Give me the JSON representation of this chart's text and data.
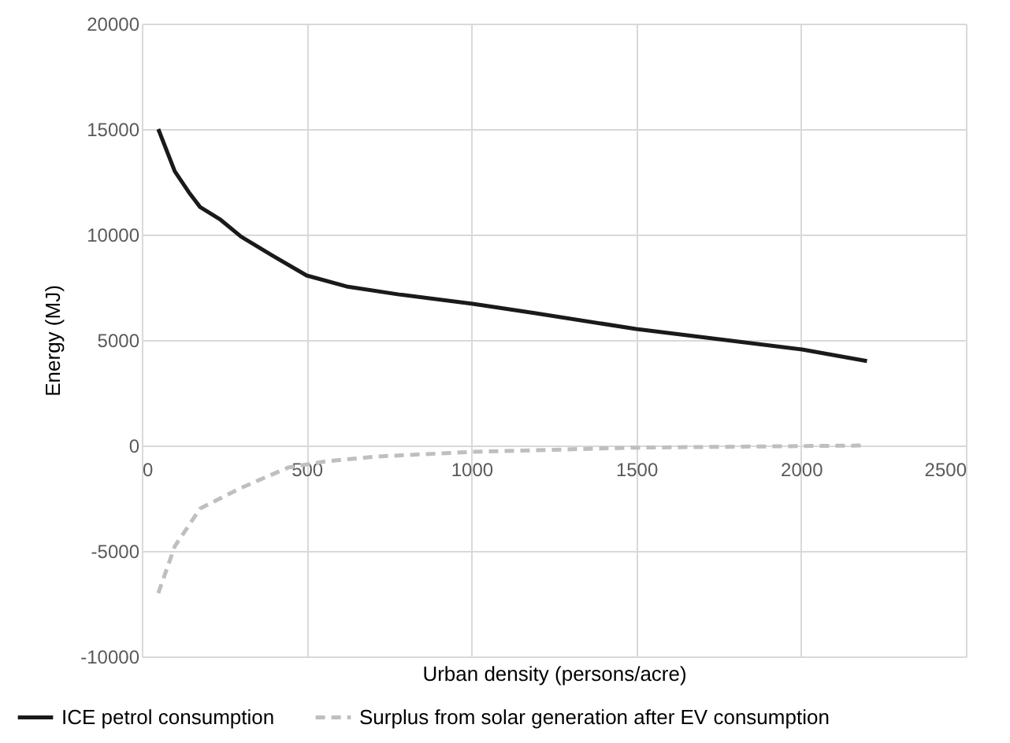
{
  "chart_data": {
    "type": "line",
    "xlabel": "Urban density (persons/acre)",
    "ylabel": "Energy (MJ)",
    "xlim": [
      0,
      2500
    ],
    "xticks": [
      0,
      500,
      1000,
      1500,
      2000,
      2500
    ],
    "ylim": [
      -10000,
      20000
    ],
    "yticks": [
      -10000,
      -5000,
      0,
      5000,
      10000,
      15000,
      20000
    ],
    "grid": true,
    "legend": "bottom",
    "marker": "none",
    "series": [
      {
        "name": "ICE petrol consumption",
        "color": "#1a1a1a",
        "line_style": "solid",
        "x": [
          50,
          100,
          143,
          177,
          239,
          301,
          397,
          500,
          621,
          780,
          1004,
          1195,
          1500,
          2003,
          2200
        ],
        "values": [
          15000,
          13000,
          12000,
          11300,
          10700,
          9900,
          9000,
          8060,
          7540,
          7160,
          6720,
          6270,
          5520,
          4550,
          4000
        ]
      },
      {
        "name": "Surplus from solar generation after EV consumption",
        "color": "#bfbfbf",
        "line_style": "dashed",
        "x": [
          50,
          100,
          177,
          301,
          445,
          558,
          717,
          1004,
          1500,
          2200
        ],
        "values": [
          -7000,
          -4780,
          -2990,
          -2010,
          -1040,
          -750,
          -520,
          -300,
          -100,
          0
        ]
      }
    ]
  }
}
